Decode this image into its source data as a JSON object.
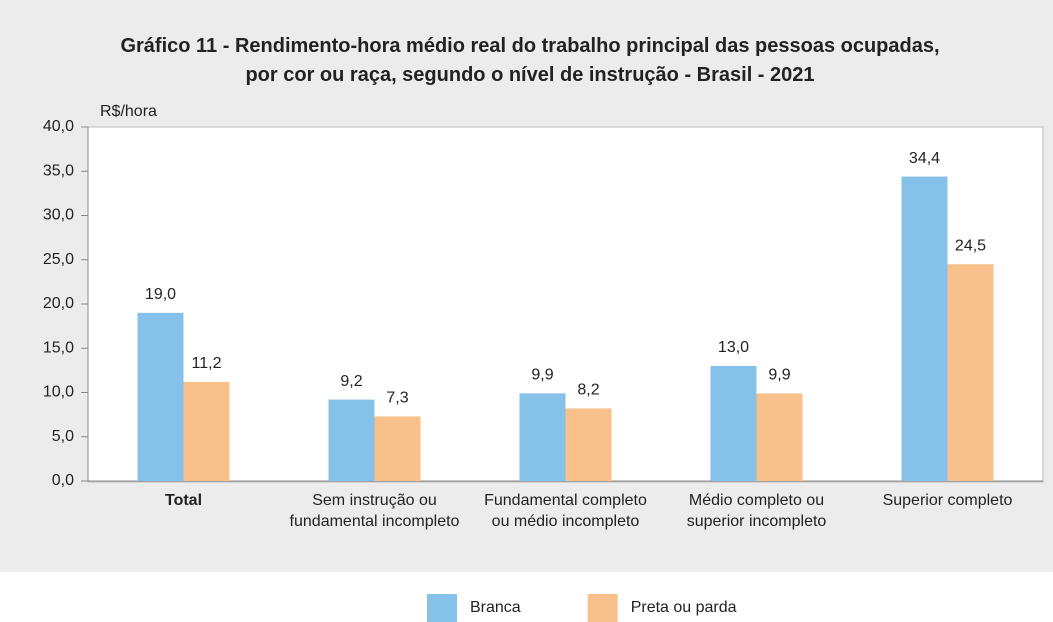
{
  "chart_data": {
    "type": "bar",
    "title": "Gráfico 11 - Rendimento-hora médio real do trabalho principal das pessoas ocupadas, por cor ou raça, segundo o nível de instrução - Brasil - 2021",
    "y_label": "R$/hora",
    "categories": [
      "Total",
      "Sem instrução ou fundamental incompleto",
      "Fundamental completo ou médio incompleto",
      "Médio completo ou superior incompleto",
      "Superior completo"
    ],
    "series": [
      {
        "name": "Branca",
        "color": "#85c1e9",
        "values": [
          19.0,
          9.2,
          9.9,
          13.0,
          34.4
        ],
        "value_labels": [
          "19,0",
          "9,2",
          "9,9",
          "13,0",
          "34,4"
        ]
      },
      {
        "name": "Preta ou parda",
        "color": "#f8c08a",
        "values": [
          11.2,
          7.3,
          8.2,
          9.9,
          24.5
        ],
        "value_labels": [
          "11,2",
          "7,3",
          "8,2",
          "9,9",
          "24,5"
        ]
      }
    ],
    "ylim": [
      0,
      40
    ],
    "yticks": [
      {
        "value": 0,
        "label": "0,0"
      },
      {
        "value": 5,
        "label": "5,0"
      },
      {
        "value": 10,
        "label": "10,0"
      },
      {
        "value": 15,
        "label": "15,0"
      },
      {
        "value": 20,
        "label": "20,0"
      },
      {
        "value": 25,
        "label": "25,0"
      },
      {
        "value": 30,
        "label": "30,0"
      },
      {
        "value": 35,
        "label": "35,0"
      },
      {
        "value": 40,
        "label": "40,0"
      }
    ],
    "legend": "bottom"
  }
}
